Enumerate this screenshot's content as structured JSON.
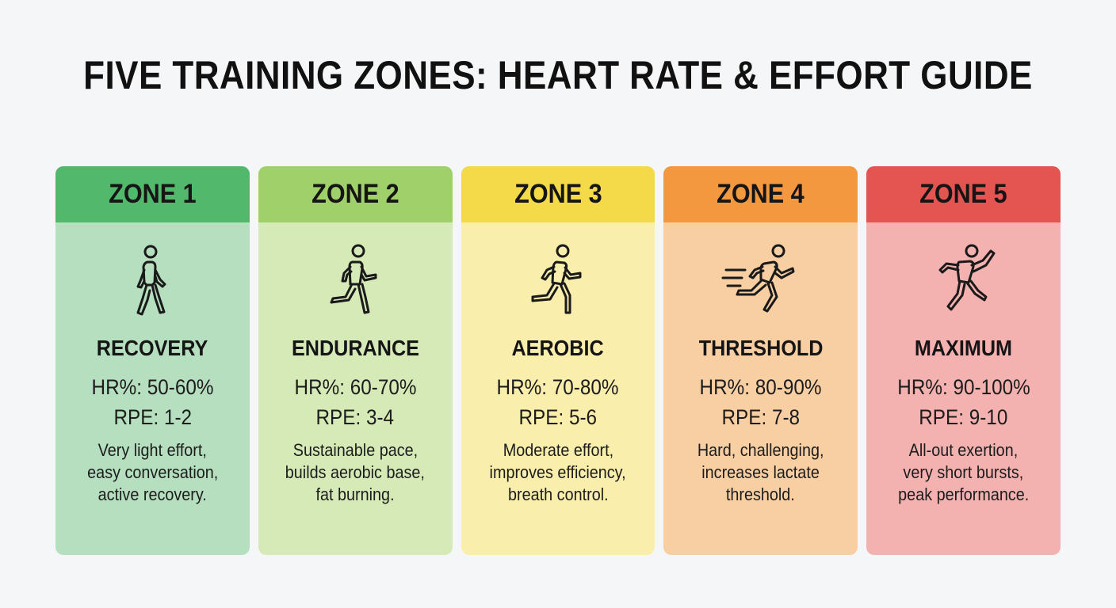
{
  "title": "FIVE TRAINING ZONES: HEART RATE & EFFORT GUIDE",
  "zones": [
    {
      "header": "ZONE 1",
      "icon": "walking-person-icon",
      "name": "RECOVERY",
      "hr": "HR%: 50-60%",
      "rpe": "RPE: 1-2",
      "desc": [
        "Very light effort,",
        "easy conversation,",
        "active recovery."
      ],
      "header_color": "#52b86c",
      "body_color": "#b5dfbf"
    },
    {
      "header": "ZONE 2",
      "icon": "jogging-person-icon",
      "name": "ENDURANCE",
      "hr": "HR%: 60-70%",
      "rpe": "RPE: 3-4",
      "desc": [
        "Sustainable pace,",
        "builds aerobic base,",
        "fat burning."
      ],
      "header_color": "#a0d069",
      "body_color": "#d6eab8"
    },
    {
      "header": "ZONE 3",
      "icon": "running-person-icon",
      "name": "AEROBIC",
      "hr": "HR%: 70-80%",
      "rpe": "RPE: 5-6",
      "desc": [
        "Moderate effort,",
        "improves efficiency,",
        "breath control."
      ],
      "header_color": "#f4d948",
      "body_color": "#f9eeab"
    },
    {
      "header": "ZONE 4",
      "icon": "fast-running-person-icon",
      "name": "THRESHOLD",
      "hr": "HR%: 80-90%",
      "rpe": "RPE: 7-8",
      "desc": [
        "Hard, challenging,",
        "increases lactate",
        "threshold."
      ],
      "header_color": "#f3983f",
      "body_color": "#f8cfa3"
    },
    {
      "header": "ZONE 5",
      "icon": "sprinting-person-icon",
      "name": "MAXIMUM",
      "hr": "HR%: 90-100%",
      "rpe": "RPE: 9-10",
      "desc": [
        "All-out exertion,",
        "very short bursts,",
        "peak performance."
      ],
      "header_color": "#e45451",
      "body_color": "#f3b1b0"
    }
  ]
}
